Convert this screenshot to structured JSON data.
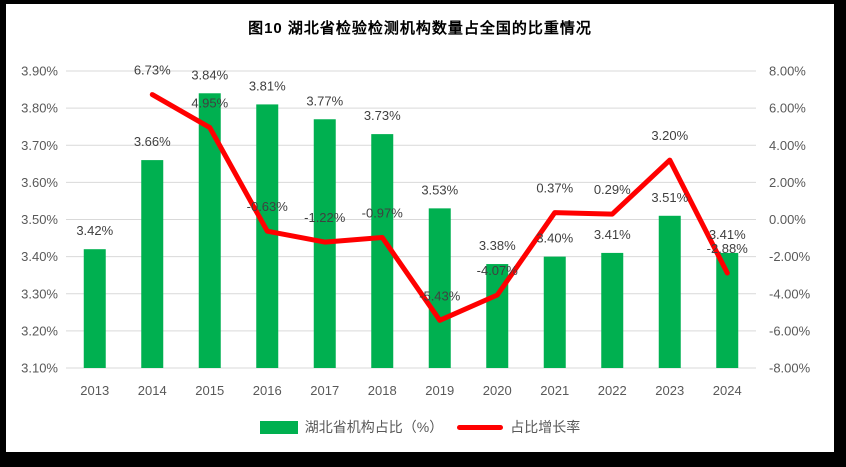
{
  "title": "图10 湖北省检验检测机构数量占全国的比重情况",
  "colors": {
    "frame": "#000000",
    "bar": "#00B050",
    "line": "#FF0000",
    "grid": "#D9D9D9",
    "axis_text": "#595959",
    "label_text": "#404040"
  },
  "legend": {
    "items": [
      {
        "label": "湖北省机构占比（%）",
        "swatch": "bar-swatch"
      },
      {
        "label": "占比增长率",
        "swatch": "line-swatch"
      }
    ]
  },
  "chart_data": {
    "type": "bar+line combo",
    "title": "图10 湖北省检验检测机构数量占全国的比重情况",
    "categories": [
      "2013",
      "2014",
      "2015",
      "2016",
      "2017",
      "2018",
      "2019",
      "2020",
      "2021",
      "2022",
      "2023",
      "2024"
    ],
    "series": [
      {
        "name": "湖北省机构占比（%）",
        "type": "bar",
        "axis": "left",
        "values": [
          3.42,
          3.66,
          3.84,
          3.81,
          3.77,
          3.73,
          3.53,
          3.38,
          3.4,
          3.41,
          3.51,
          3.41
        ],
        "labels": [
          "3.42%",
          "3.66%",
          "3.84%",
          "3.81%",
          "3.77%",
          "3.73%",
          "3.53%",
          "3.38%",
          "3.40%",
          "3.41%",
          "3.51%",
          "3.41%"
        ]
      },
      {
        "name": "占比增长率",
        "type": "line",
        "axis": "right",
        "values": [
          null,
          6.73,
          4.95,
          -0.63,
          -1.22,
          -0.97,
          -5.43,
          -4.07,
          0.37,
          0.29,
          3.2,
          -2.88
        ],
        "labels": [
          "",
          "6.73%",
          "4.95%",
          "-0.63%",
          "-1.22%",
          "-0.97%",
          "-5.43%",
          "-4.07%",
          "0.37%",
          "0.29%",
          "3.20%",
          "-2.88%"
        ]
      }
    ],
    "left_axis": {
      "min": 3.1,
      "max": 3.9,
      "step": 0.1,
      "ticks": [
        "3.90%",
        "3.80%",
        "3.70%",
        "3.60%",
        "3.50%",
        "3.40%",
        "3.30%",
        "3.20%",
        "3.10%"
      ]
    },
    "right_axis": {
      "min": -8.0,
      "max": 8.0,
      "step": 2.0,
      "ticks": [
        "8.00%",
        "6.00%",
        "4.00%",
        "2.00%",
        "0.00%",
        "-2.00%",
        "-4.00%",
        "-6.00%",
        "-8.00%"
      ]
    },
    "grid": true,
    "legend_position": "bottom"
  }
}
